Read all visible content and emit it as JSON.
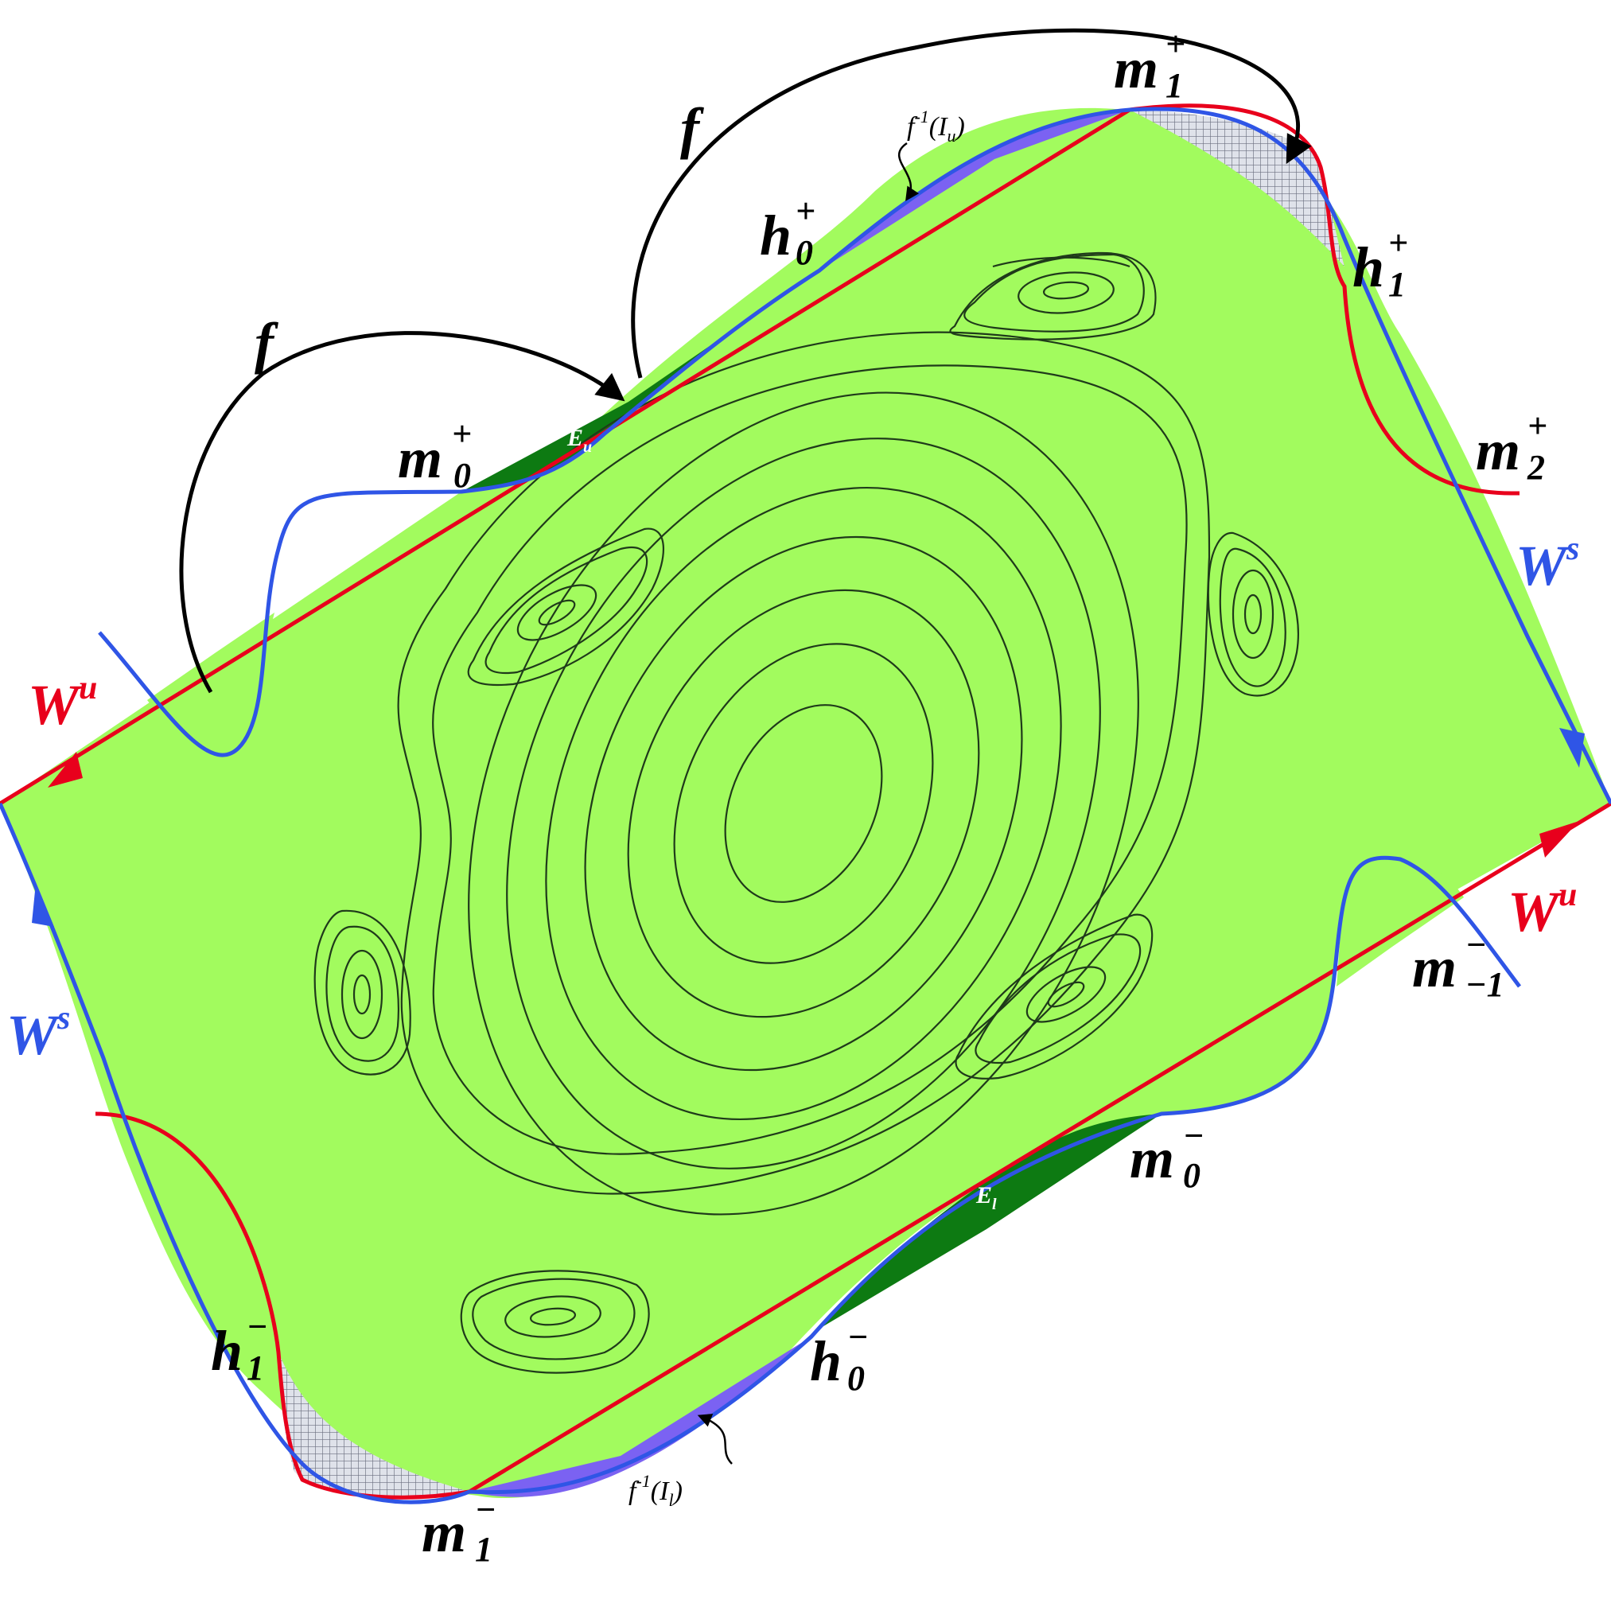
{
  "colors": {
    "region_fill": "#a2fb5e",
    "dark_lobe": "#0d7a12",
    "purple_lobe": "#7b62f2",
    "hatch_lobe": "#c8ccd8",
    "unstable_manifold": "#e8001c",
    "stable_manifold": "#2f55e6",
    "contour": "#1f3a1a",
    "arrow": "#000000"
  },
  "labels": {
    "map_upper": "f",
    "map_lower": "f",
    "wu_left": {
      "base": "W",
      "sup": "u"
    },
    "wu_right": {
      "base": "W",
      "sup": "u"
    },
    "ws_left": {
      "base": "W",
      "sup": "s"
    },
    "ws_right": {
      "base": "W",
      "sup": "s"
    },
    "m0_plus": {
      "base": "m",
      "sup": "+",
      "sub": "0"
    },
    "m1_plus": {
      "base": "m",
      "sup": "+",
      "sub": "1"
    },
    "m2_plus": {
      "base": "m",
      "sup": "+",
      "sub": "2"
    },
    "h0_plus": {
      "base": "h",
      "sup": "+",
      "sub": "0"
    },
    "h1_plus": {
      "base": "h",
      "sup": "+",
      "sub": "1"
    },
    "m0_minus": {
      "base": "m",
      "sup": "−",
      "sub": "0"
    },
    "m1_minus": {
      "base": "m",
      "sup": "−",
      "sub": "1"
    },
    "mneg1_minus": {
      "base": "m",
      "sup": "−",
      "sub": "−1"
    },
    "h0_minus": {
      "base": "h",
      "sup": "−",
      "sub": "0"
    },
    "h1_minus": {
      "base": "h",
      "sup": "−",
      "sub": "1"
    },
    "finv_iu": {
      "base": "f",
      "sup": "-1",
      "rest": "(I",
      "rest_sub": "u",
      "close": ")"
    },
    "finv_il": {
      "base": "f",
      "sup": "-1",
      "rest": "(I",
      "rest_sub": "l",
      "close": ")"
    },
    "eu": {
      "base": "E",
      "sub": "u"
    },
    "el": {
      "base": "E",
      "sub": "l"
    }
  }
}
